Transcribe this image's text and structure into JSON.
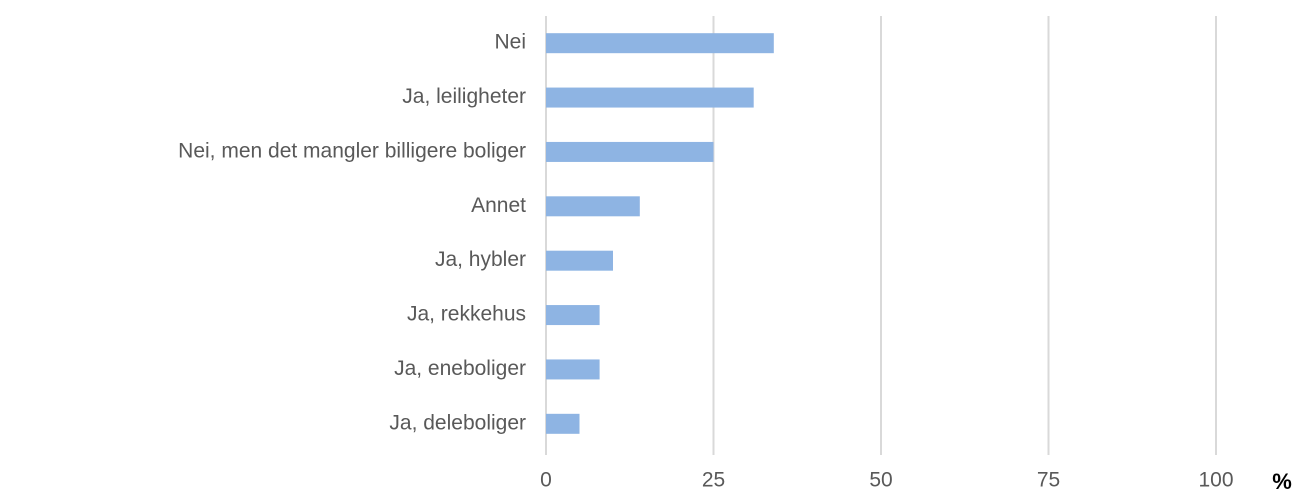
{
  "chart_data": {
    "type": "bar",
    "orientation": "horizontal",
    "categories": [
      "Nei",
      "Ja, leiligheter",
      "Nei,  men det mangler billigere boliger",
      "Annet",
      "Ja, hybler",
      "Ja, rekkehus",
      "Ja, eneboliger",
      "Ja, deleboliger"
    ],
    "values": [
      34,
      31,
      25,
      14,
      10,
      8,
      8,
      5
    ],
    "color": "#8eb4e3",
    "xlim": [
      0,
      100
    ],
    "xticks": [
      0,
      25,
      50,
      75,
      100
    ],
    "x_label": "%",
    "grid": true
  }
}
